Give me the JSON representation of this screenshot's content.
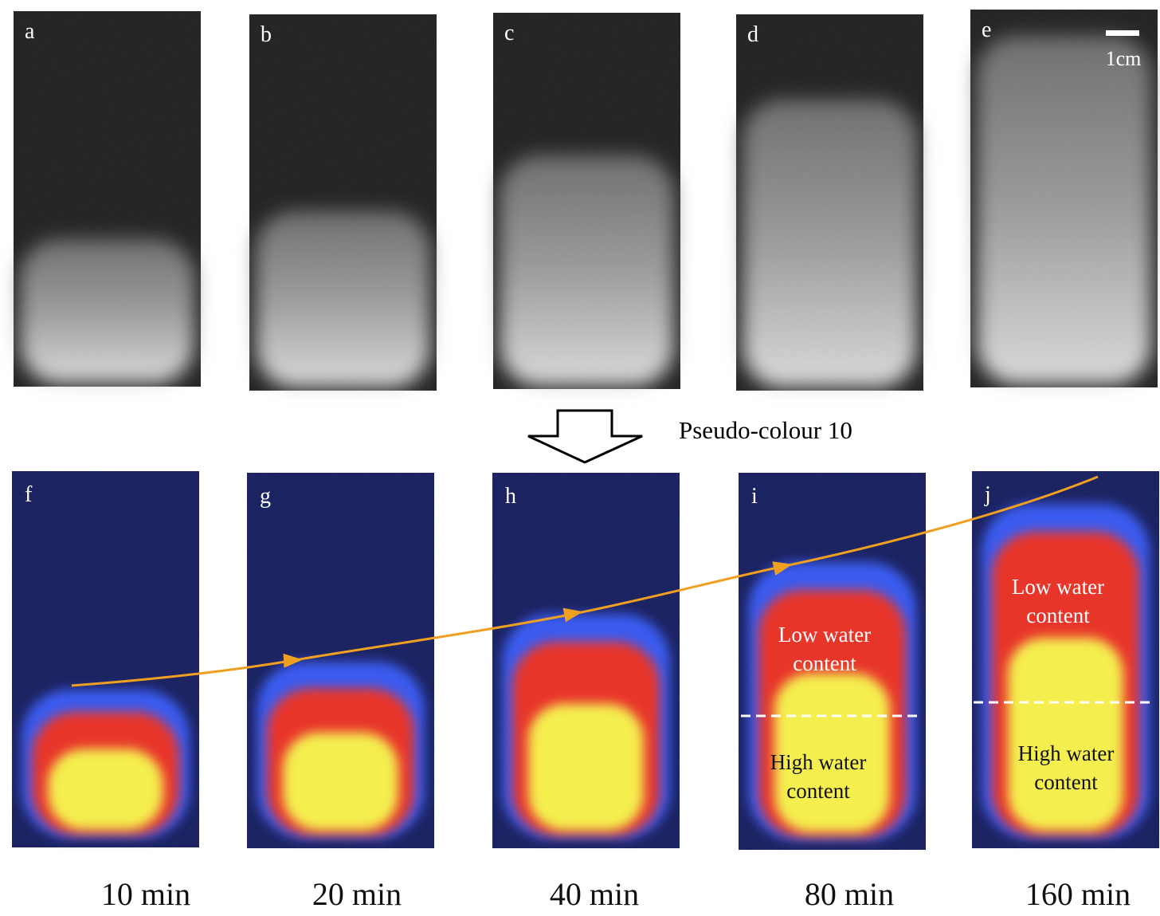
{
  "top_panels": [
    {
      "label": "a"
    },
    {
      "label": "b"
    },
    {
      "label": "c"
    },
    {
      "label": "d"
    },
    {
      "label": "e"
    }
  ],
  "scale_bar": "1cm",
  "arrow_label": "Pseudo-colour 10",
  "bottom_panels": [
    {
      "label": "f",
      "annotations": []
    },
    {
      "label": "g",
      "annotations": []
    },
    {
      "label": "h",
      "annotations": []
    },
    {
      "label": "i",
      "annotations": [
        {
          "lines": [
            "Low water",
            "content"
          ]
        },
        {
          "lines": [
            "High water",
            "content"
          ]
        }
      ]
    },
    {
      "label": "j",
      "annotations": [
        {
          "lines": [
            "Low water",
            "content"
          ]
        },
        {
          "lines": [
            "High water",
            "content"
          ]
        }
      ]
    }
  ],
  "times": [
    "10 min",
    "20 min",
    "40 min",
    "80 min",
    "160 min"
  ]
}
